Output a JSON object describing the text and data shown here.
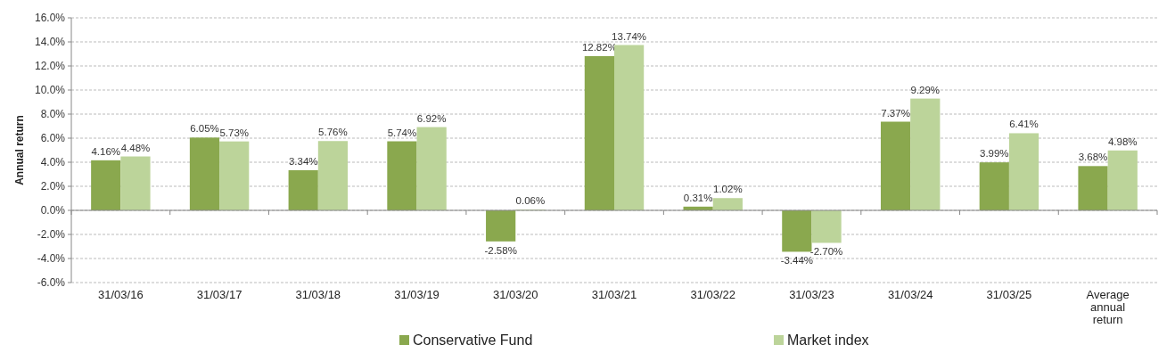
{
  "chart_data": {
    "type": "bar",
    "ylabel": "Annual return",
    "categories": [
      "31/03/16",
      "31/03/17",
      "31/03/18",
      "31/03/19",
      "31/03/20",
      "31/03/21",
      "31/03/22",
      "31/03/23",
      "31/03/24",
      "31/03/25",
      "Average annual return"
    ],
    "series": [
      {
        "name": "Conservative Fund",
        "color": "#8aa84e",
        "values": [
          4.16,
          6.05,
          3.34,
          5.74,
          -2.58,
          12.82,
          0.31,
          -3.44,
          7.37,
          3.99,
          3.68
        ],
        "value_labels": [
          "4.16%",
          "6.05%",
          "3.34%",
          "5.74%",
          "-2.58%",
          "12.82%",
          "0.31%",
          "-3.44%",
          "7.37%",
          "3.99%",
          "3.68%"
        ]
      },
      {
        "name": "Market index",
        "color": "#bcd49a",
        "values": [
          4.48,
          5.73,
          5.76,
          6.92,
          0.06,
          13.74,
          1.02,
          -2.7,
          9.29,
          6.41,
          4.98
        ],
        "value_labels": [
          "4.48%",
          "5.73%",
          "5.76%",
          "6.92%",
          "0.06%",
          "13.74%",
          "1.02%",
          "-2.70%",
          "9.29%",
          "6.41%",
          "4.98%"
        ]
      }
    ],
    "ylim": [
      -6,
      16
    ],
    "yticks": [
      {
        "value": -6,
        "label": "-6.0%"
      },
      {
        "value": -4,
        "label": "-4.0%"
      },
      {
        "value": -2,
        "label": "-2.0%"
      },
      {
        "value": 0,
        "label": "0.0%"
      },
      {
        "value": 2,
        "label": "2.0%"
      },
      {
        "value": 4,
        "label": "4.0%"
      },
      {
        "value": 6,
        "label": "6.0%"
      },
      {
        "value": 8,
        "label": "8.0%"
      },
      {
        "value": 10,
        "label": "10.0%"
      },
      {
        "value": 12,
        "label": "12.0%"
      },
      {
        "value": 14,
        "label": "14.0%"
      },
      {
        "value": 16,
        "label": "16.0%"
      }
    ],
    "grid": "y",
    "legend": "bottom"
  }
}
